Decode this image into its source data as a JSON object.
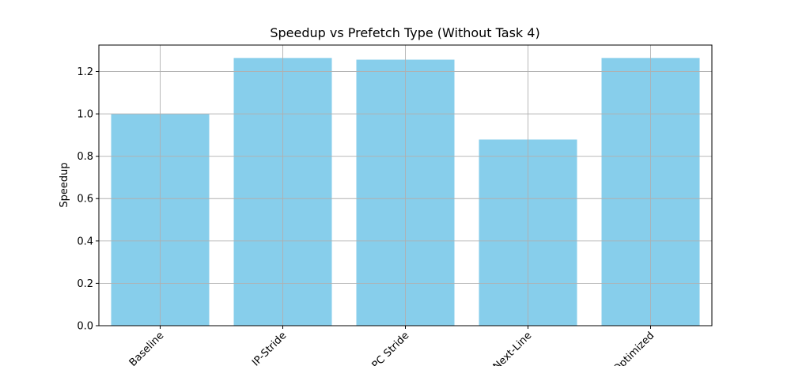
{
  "chart_data": {
    "type": "bar",
    "title": "Speedup vs Prefetch Type (Without Task 4)",
    "xlabel": "",
    "ylabel": "Speedup",
    "categories": [
      "Baseline",
      "IP-Stride",
      "PC Stride",
      "Next-Line",
      "Optimized"
    ],
    "values": [
      1.0,
      1.264,
      1.256,
      0.879,
      1.264
    ],
    "ylim": [
      0,
      1.325
    ],
    "yticks": [
      0.0,
      0.2,
      0.4,
      0.6,
      0.8,
      1.0,
      1.2
    ],
    "ytick_labels": [
      "0.0",
      "0.2",
      "0.4",
      "0.6",
      "0.8",
      "1.0",
      "1.2"
    ],
    "grid": true,
    "bar_color": "#87CEEB",
    "xtick_rotation_deg": 45
  }
}
